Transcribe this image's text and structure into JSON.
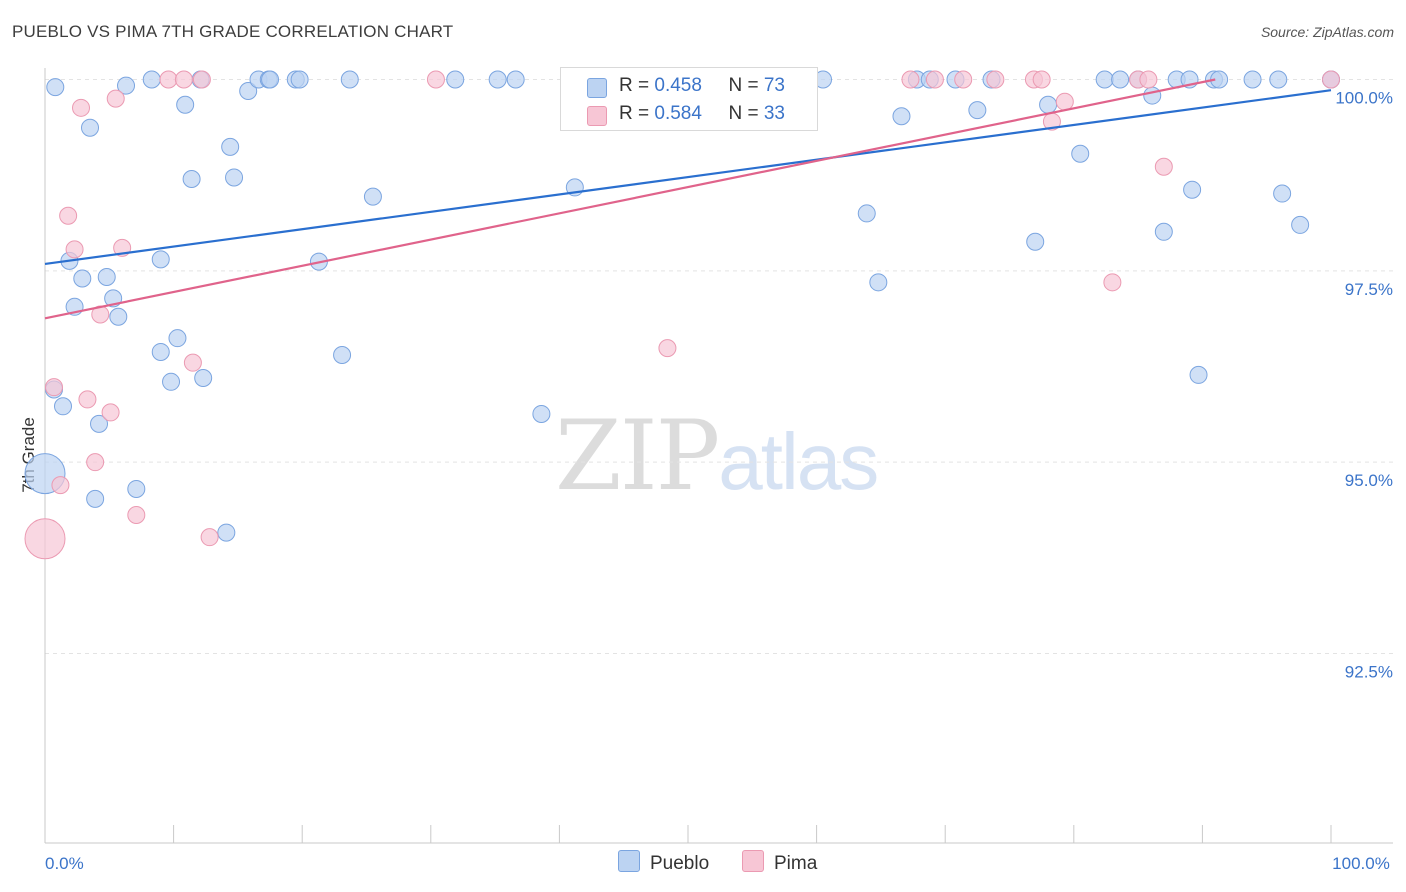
{
  "header": {
    "title": "PUEBLO VS PIMA 7TH GRADE CORRELATION CHART",
    "source": "Source: ZipAtlas.com"
  },
  "legend_top": {
    "pueblo": {
      "r_label": "R = ",
      "r_value": "0.458",
      "n_label": "N = ",
      "n_value": "73"
    },
    "pima": {
      "r_label": "R = ",
      "r_value": "0.584",
      "n_label": "N = ",
      "n_value": "33"
    }
  },
  "legend_bottom": {
    "pueblo": "Pueblo",
    "pima": "Pima"
  },
  "watermark": {
    "zip": "ZIP",
    "atlas": "atlas"
  },
  "colors": {
    "pueblo_fill": "#bcd3f2",
    "pueblo_stroke": "#7ba5e0",
    "pueblo_line": "#2a6fcf",
    "pima_fill": "#f7c6d5",
    "pima_stroke": "#eb9ab2",
    "pima_line": "#e0638b",
    "axis_label": "#3b74c9",
    "grid": "#e3e3e3"
  },
  "chart_data": {
    "type": "scatter",
    "title": "PUEBLO VS PIMA 7TH GRADE CORRELATION CHART",
    "xlabel": "",
    "ylabel": "7th Grade",
    "xlim": [
      0,
      100
    ],
    "ylim": [
      90.5,
      100.2
    ],
    "x_tick_labels": [
      {
        "value": 0,
        "label": "0.0%"
      },
      {
        "value": 100,
        "label": "100.0%"
      }
    ],
    "y_ticks": [
      {
        "value": 100,
        "label": "100.0%"
      },
      {
        "value": 97.5,
        "label": "97.5%"
      },
      {
        "value": 95,
        "label": "95.0%"
      },
      {
        "value": 92.5,
        "label": "92.5%"
      }
    ],
    "grid": true,
    "legend": "bottom-center",
    "series": [
      {
        "name": "Pueblo",
        "r": 0.458,
        "n": 73,
        "trend": {
          "x": [
            0,
            100
          ],
          "y": [
            97.59,
            99.86
          ]
        },
        "points": [
          {
            "x": 0,
            "y": 94.85,
            "big": true
          },
          {
            "x": 0.7,
            "y": 95.95
          },
          {
            "x": 1.4,
            "y": 95.73
          },
          {
            "x": 1.9,
            "y": 97.63
          },
          {
            "x": 2.3,
            "y": 97.03
          },
          {
            "x": 2.9,
            "y": 97.4
          },
          {
            "x": 3.5,
            "y": 99.37
          },
          {
            "x": 3.9,
            "y": 94.52
          },
          {
            "x": 4.2,
            "y": 95.5
          },
          {
            "x": 4.8,
            "y": 97.42
          },
          {
            "x": 5.3,
            "y": 97.14
          },
          {
            "x": 5.7,
            "y": 96.9
          },
          {
            "x": 6.3,
            "y": 99.92
          },
          {
            "x": 7.1,
            "y": 94.65
          },
          {
            "x": 8.3,
            "y": 100
          },
          {
            "x": 9.0,
            "y": 97.65
          },
          {
            "x": 9.0,
            "y": 96.44
          },
          {
            "x": 9.8,
            "y": 96.05
          },
          {
            "x": 10.3,
            "y": 96.62
          },
          {
            "x": 10.9,
            "y": 99.67
          },
          {
            "x": 11.4,
            "y": 98.7
          },
          {
            "x": 12.1,
            "y": 100
          },
          {
            "x": 12.3,
            "y": 96.1
          },
          {
            "x": 14.1,
            "y": 94.08
          },
          {
            "x": 14.4,
            "y": 99.12
          },
          {
            "x": 14.7,
            "y": 98.72
          },
          {
            "x": 15.8,
            "y": 99.85
          },
          {
            "x": 16.6,
            "y": 100
          },
          {
            "x": 17.4,
            "y": 100
          },
          {
            "x": 17.5,
            "y": 100
          },
          {
            "x": 19.5,
            "y": 100
          },
          {
            "x": 19.8,
            "y": 100
          },
          {
            "x": 21.3,
            "y": 97.62
          },
          {
            "x": 23.1,
            "y": 96.4
          },
          {
            "x": 23.7,
            "y": 100
          },
          {
            "x": 25.5,
            "y": 98.47
          },
          {
            "x": 31.9,
            "y": 100
          },
          {
            "x": 35.2,
            "y": 100
          },
          {
            "x": 36.6,
            "y": 100
          },
          {
            "x": 38.6,
            "y": 95.63
          },
          {
            "x": 41.2,
            "y": 98.59
          },
          {
            "x": 42.2,
            "y": 100
          },
          {
            "x": 47.8,
            "y": 100
          },
          {
            "x": 60.5,
            "y": 100
          },
          {
            "x": 63.9,
            "y": 98.25
          },
          {
            "x": 64.8,
            "y": 97.35
          },
          {
            "x": 67.8,
            "y": 100
          },
          {
            "x": 66.6,
            "y": 99.52
          },
          {
            "x": 68.8,
            "y": 100
          },
          {
            "x": 70.8,
            "y": 100
          },
          {
            "x": 72.5,
            "y": 99.6
          },
          {
            "x": 73.6,
            "y": 100
          },
          {
            "x": 77.0,
            "y": 97.88
          },
          {
            "x": 78.0,
            "y": 99.67
          },
          {
            "x": 80.5,
            "y": 99.03
          },
          {
            "x": 82.4,
            "y": 100
          },
          {
            "x": 83.6,
            "y": 100
          },
          {
            "x": 85.0,
            "y": 100
          },
          {
            "x": 86.1,
            "y": 99.79
          },
          {
            "x": 87.0,
            "y": 98.01
          },
          {
            "x": 88.0,
            "y": 100
          },
          {
            "x": 89.2,
            "y": 98.56
          },
          {
            "x": 89.7,
            "y": 96.14
          },
          {
            "x": 89.0,
            "y": 100
          },
          {
            "x": 90.9,
            "y": 100
          },
          {
            "x": 91.3,
            "y": 100
          },
          {
            "x": 93.9,
            "y": 100
          },
          {
            "x": 95.9,
            "y": 100
          },
          {
            "x": 96.2,
            "y": 98.51
          },
          {
            "x": 97.6,
            "y": 98.1
          },
          {
            "x": 100,
            "y": 100
          },
          {
            "x": 100,
            "y": 100
          },
          {
            "x": 0.8,
            "y": 99.9
          }
        ]
      },
      {
        "name": "Pima",
        "r": 0.584,
        "n": 33,
        "trend": {
          "x": [
            0,
            91.0
          ],
          "y": [
            96.88,
            100.0
          ]
        },
        "points": [
          {
            "x": 0,
            "y": 94.0,
            "big": true
          },
          {
            "x": 0.7,
            "y": 95.98
          },
          {
            "x": 1.2,
            "y": 94.7
          },
          {
            "x": 1.8,
            "y": 98.22
          },
          {
            "x": 2.3,
            "y": 97.78
          },
          {
            "x": 2.8,
            "y": 99.63
          },
          {
            "x": 3.3,
            "y": 95.82
          },
          {
            "x": 3.9,
            "y": 95.0
          },
          {
            "x": 4.3,
            "y": 96.93
          },
          {
            "x": 5.1,
            "y": 95.65
          },
          {
            "x": 5.5,
            "y": 99.75
          },
          {
            "x": 6.0,
            "y": 97.8
          },
          {
            "x": 7.1,
            "y": 94.31
          },
          {
            "x": 9.6,
            "y": 100
          },
          {
            "x": 10.8,
            "y": 100
          },
          {
            "x": 12.2,
            "y": 100
          },
          {
            "x": 12.8,
            "y": 94.02
          },
          {
            "x": 11.5,
            "y": 96.3
          },
          {
            "x": 30.4,
            "y": 100
          },
          {
            "x": 48.4,
            "y": 96.49
          },
          {
            "x": 67.3,
            "y": 100
          },
          {
            "x": 69.2,
            "y": 100
          },
          {
            "x": 71.4,
            "y": 100
          },
          {
            "x": 73.9,
            "y": 100
          },
          {
            "x": 76.9,
            "y": 100
          },
          {
            "x": 77.5,
            "y": 100
          },
          {
            "x": 78.3,
            "y": 99.45
          },
          {
            "x": 79.3,
            "y": 99.71
          },
          {
            "x": 83.0,
            "y": 97.35
          },
          {
            "x": 85.0,
            "y": 100
          },
          {
            "x": 85.8,
            "y": 100
          },
          {
            "x": 87.0,
            "y": 98.86
          },
          {
            "x": 100,
            "y": 100
          }
        ]
      }
    ]
  }
}
